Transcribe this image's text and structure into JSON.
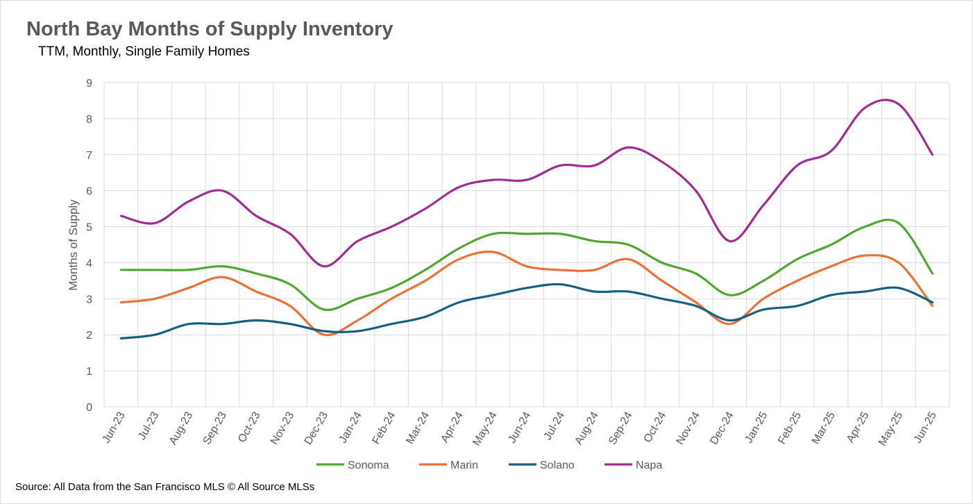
{
  "chart_data": {
    "type": "line",
    "title": "North Bay Months of Supply Inventory",
    "subtitle": "TTM, Monthly, Single Family Homes",
    "xlabel": "",
    "ylabel": "Months of Supply",
    "ylim": [
      0,
      9
    ],
    "yticks": [
      "0",
      "1",
      "2",
      "3",
      "4",
      "5",
      "6",
      "7",
      "8",
      "9"
    ],
    "grid": true,
    "legend": "bottom",
    "categories": [
      "Jun-23",
      "Jul-23",
      "Aug-23",
      "Sep-23",
      "Oct-23",
      "Nov-23",
      "Dec-23",
      "Jan-24",
      "Feb-24",
      "Mar-24",
      "Apr-24",
      "May-24",
      "Jun-24",
      "Jul-24",
      "Aug-24",
      "Sep-24",
      "Oct-24",
      "Nov-24",
      "Dec-24",
      "Jan-25",
      "Feb-25",
      "Mar-25",
      "Apr-25",
      "May-25",
      "Jun-25"
    ],
    "series": [
      {
        "name": "Sonoma",
        "color": "#4ea72e",
        "values": [
          3.8,
          3.8,
          3.8,
          3.9,
          3.7,
          3.4,
          2.7,
          3.0,
          3.3,
          3.8,
          4.4,
          4.8,
          4.8,
          4.8,
          4.6,
          4.5,
          4.0,
          3.7,
          3.1,
          3.5,
          4.1,
          4.5,
          5.0,
          5.1,
          3.7
        ]
      },
      {
        "name": "Marin",
        "color": "#e97132",
        "values": [
          2.9,
          3.0,
          3.3,
          3.6,
          3.2,
          2.8,
          2.0,
          2.4,
          3.0,
          3.5,
          4.1,
          4.3,
          3.9,
          3.8,
          3.8,
          4.1,
          3.5,
          2.9,
          2.3,
          3.0,
          3.5,
          3.9,
          4.2,
          4.0,
          2.8
        ]
      },
      {
        "name": "Solano",
        "color": "#156082",
        "values": [
          1.9,
          2.0,
          2.3,
          2.3,
          2.4,
          2.3,
          2.1,
          2.1,
          2.3,
          2.5,
          2.9,
          3.1,
          3.3,
          3.4,
          3.2,
          3.2,
          3.0,
          2.8,
          2.4,
          2.7,
          2.8,
          3.1,
          3.2,
          3.3,
          2.9
        ]
      },
      {
        "name": "Napa",
        "color": "#a02b93",
        "values": [
          5.3,
          5.1,
          5.7,
          6.0,
          5.3,
          4.8,
          3.9,
          4.6,
          5.0,
          5.5,
          6.1,
          6.3,
          6.3,
          6.7,
          6.7,
          7.2,
          6.8,
          6.0,
          4.6,
          5.6,
          6.7,
          7.1,
          8.3,
          8.4,
          7.0
        ]
      }
    ]
  },
  "source": "Source: All Data from the San Francisco MLS © All Source MLSs"
}
